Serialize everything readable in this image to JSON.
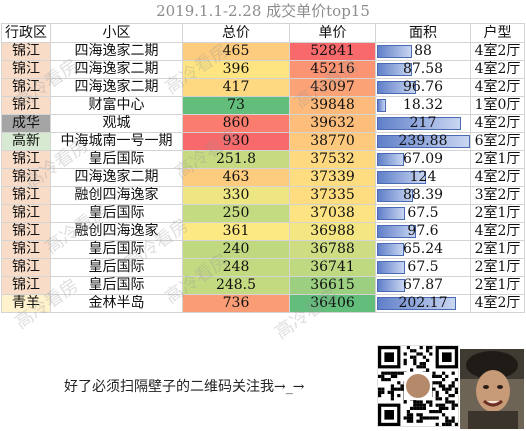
{
  "title": "2019.1.1-2.28 成交单价top15",
  "columns": [
    "行政区",
    "小区",
    "总价",
    "单价",
    "面积",
    "户型"
  ],
  "area_max": 239.88,
  "rows": [
    {
      "district": "锦江",
      "name": "四海逸家二期",
      "total": "465",
      "unit": "52841",
      "area": "88",
      "area_val": 88,
      "layout": "4室2厅",
      "d_color": "#f8dcc8",
      "t_color": "#fdcc7e",
      "u_color": "#f8696b"
    },
    {
      "district": "锦江",
      "name": "四海逸家二期",
      "total": "396",
      "unit": "45216",
      "area": "87.58",
      "area_val": 87.58,
      "layout": "4室2厅",
      "d_color": "#f8dcc8",
      "t_color": "#fee582",
      "u_color": "#fa9473"
    },
    {
      "district": "锦江",
      "name": "四海逸家二期",
      "total": "417",
      "unit": "43097",
      "area": "96.76",
      "area_val": 96.76,
      "layout": "4室2厅",
      "d_color": "#f8dcc8",
      "t_color": "#fed981",
      "u_color": "#fba276"
    },
    {
      "district": "锦江",
      "name": "财富中心",
      "total": "73",
      "unit": "39848",
      "area": "18.32",
      "area_val": 18.32,
      "layout": "1室0厅",
      "d_color": "#f8dcc8",
      "t_color": "#63be7b",
      "u_color": "#fdba7b"
    },
    {
      "district": "成华",
      "name": "观城",
      "total": "860",
      "unit": "39632",
      "area": "217",
      "area_val": 217,
      "layout": "4室2厅",
      "d_color": "#a5a5a5",
      "t_color": "#f97c6e",
      "u_color": "#fdbd7b"
    },
    {
      "district": "高新",
      "name": "中海城南一号一期",
      "total": "930",
      "unit": "38770",
      "area": "239.88",
      "area_val": 239.88,
      "layout": "6室2厅",
      "d_color": "#d7ead1",
      "t_color": "#f8696b",
      "u_color": "#fec97d"
    },
    {
      "district": "锦江",
      "name": "皇后国际",
      "total": "251.8",
      "unit": "37532",
      "area": "67.09",
      "area_val": 67.09,
      "layout": "2室1厅",
      "d_color": "#f8dcc8",
      "t_color": "#c6db81",
      "u_color": "#fed980"
    },
    {
      "district": "锦江",
      "name": "四海逸家二期",
      "total": "463",
      "unit": "37339",
      "area": "124",
      "area_val": 124,
      "layout": "4室2厅",
      "d_color": "#f8dcc8",
      "t_color": "#fecc7e",
      "u_color": "#fedd81"
    },
    {
      "district": "锦江",
      "name": "融创四海逸家",
      "total": "330",
      "unit": "37335",
      "area": "88.39",
      "area_val": 88.39,
      "layout": "3室2厅",
      "d_color": "#f8dcc8",
      "t_color": "#eee683",
      "u_color": "#fedd81"
    },
    {
      "district": "锦江",
      "name": "皇后国际",
      "total": "250",
      "unit": "37038",
      "area": "67.5",
      "area_val": 67.5,
      "layout": "2室1厅",
      "d_color": "#f8dcc8",
      "t_color": "#c5db81",
      "u_color": "#fde382"
    },
    {
      "district": "锦江",
      "name": "融创四海逸家",
      "total": "361",
      "unit": "36988",
      "area": "97.6",
      "area_val": 97.6,
      "layout": "4室2厅",
      "d_color": "#f8dcc8",
      "t_color": "#fde983",
      "u_color": "#f4e783"
    },
    {
      "district": "锦江",
      "name": "皇后国际",
      "total": "240",
      "unit": "36788",
      "area": "65.24",
      "area_val": 65.24,
      "layout": "2室1厅",
      "d_color": "#f8dcc8",
      "t_color": "#c0d980",
      "u_color": "#cfdd82"
    },
    {
      "district": "锦江",
      "name": "皇后国际",
      "total": "248",
      "unit": "36741",
      "area": "67.5",
      "area_val": 67.5,
      "layout": "2室1厅",
      "d_color": "#f8dcc8",
      "t_color": "#c4da81",
      "u_color": "#bfd981"
    },
    {
      "district": "锦江",
      "name": "皇后国际",
      "total": "248.5",
      "unit": "36615",
      "area": "67.87",
      "area_val": 67.87,
      "layout": "2室1厅",
      "d_color": "#f8dcc8",
      "t_color": "#c4da81",
      "u_color": "#9ccf7f"
    },
    {
      "district": "青羊",
      "name": "金林半岛",
      "total": "736",
      "unit": "36406",
      "area": "202.17",
      "area_val": 202.17,
      "layout": "4室2厅",
      "d_color": "#fff2cc",
      "t_color": "#fa9c75",
      "u_color": "#63be7b"
    }
  ],
  "watermark": "高冷看房",
  "footer_text": "好了必须扫隔壁子的二维码关注我→_→"
}
